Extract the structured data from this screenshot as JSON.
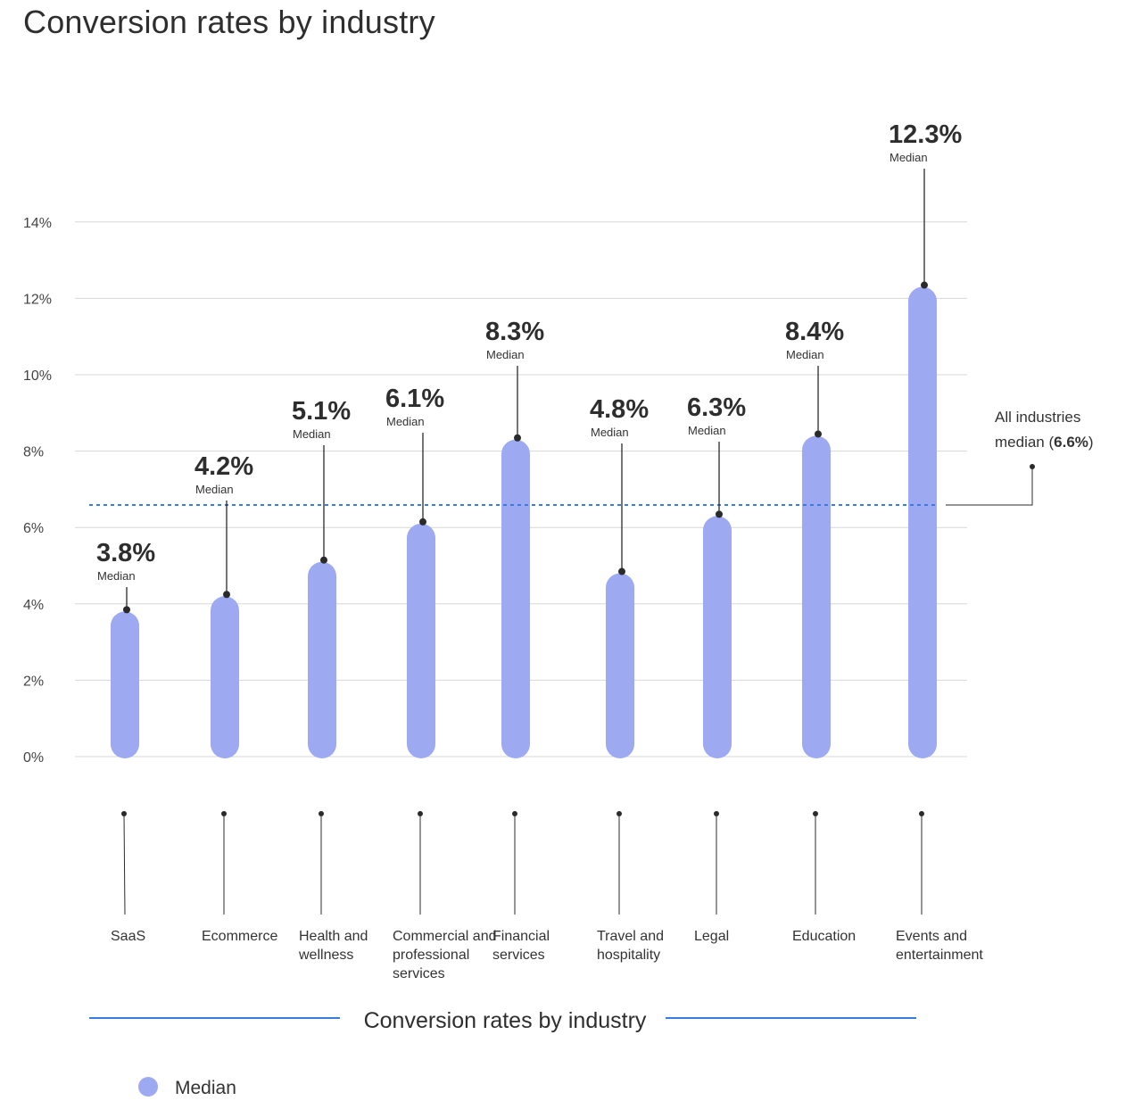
{
  "title": "Conversion rates by industry",
  "chart_data": {
    "type": "bar",
    "title": "Conversion rates by industry",
    "categories": [
      [
        "SaaS"
      ],
      [
        "Ecommerce"
      ],
      [
        "Health and",
        "wellness"
      ],
      [
        "Commercial and",
        "professional",
        "services"
      ],
      [
        "Financial",
        "services"
      ],
      [
        "Travel and",
        "hospitality"
      ],
      [
        "Legal"
      ],
      [
        "Education"
      ],
      [
        "Events and",
        "entertainment"
      ]
    ],
    "series": [
      {
        "name": "Median",
        "color": "#9daaf2",
        "values": [
          3.8,
          4.2,
          5.1,
          6.1,
          8.3,
          4.8,
          6.3,
          8.4,
          12.3
        ],
        "labels": [
          "3.8%",
          "4.2%",
          "5.1%",
          "6.1%",
          "8.3%",
          "4.8%",
          "6.3%",
          "8.4%",
          "12.3%"
        ],
        "sublabel": "Median"
      }
    ],
    "yticks": [
      "0%",
      "2%",
      "4%",
      "6%",
      "8%",
      "10%",
      "12%",
      "14%"
    ],
    "ylim": [
      0,
      14
    ],
    "grid": true,
    "reference_line": {
      "value": 6.6,
      "label_line1": "All industries",
      "label_line2_prefix": "median (",
      "label_line2_value": "6.6%",
      "label_line2_suffix": ")",
      "color": "#3a7be0"
    },
    "bottom_title": "Conversion rates by industry",
    "legend": {
      "position": "bottom-left",
      "label": "Median"
    }
  }
}
